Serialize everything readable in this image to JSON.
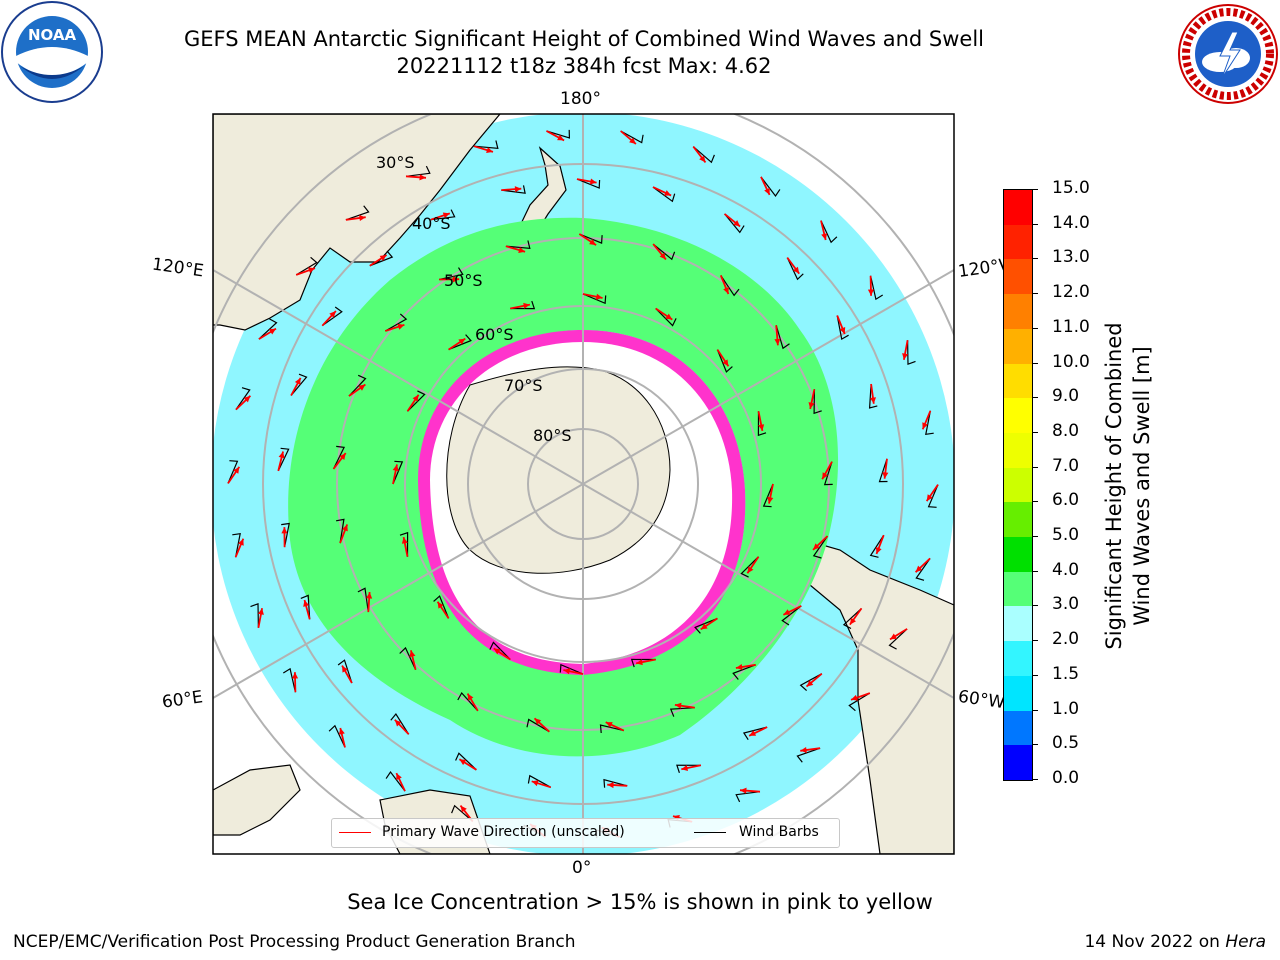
{
  "header": {
    "title_line1": "GEFS MEAN Antarctic Significant Height of Combined Wind Waves and Swell",
    "title_line2": "20221112 t18z 384h fcst   Max: 4.62"
  },
  "logos": {
    "left": "NOAA",
    "right": "NATIONAL WEATHER SERVICE"
  },
  "map": {
    "projection": "south-polar-stereographic",
    "longitude_labels": {
      "top": "180°",
      "bottom": "0°",
      "upper_left": "120°E",
      "upper_right": "120°W",
      "lower_left": "60°E",
      "lower_right": "60°W"
    },
    "latitude_labels": [
      "30°S",
      "40°S",
      "50°S",
      "60°S",
      "70°S",
      "80°S"
    ],
    "colors": {
      "land": "#efecdc",
      "ice": "#ffffff",
      "sea_ice_edge": "#ff33cc",
      "arrow": "#ff0000",
      "barb": "#000000"
    }
  },
  "legend": {
    "primary_wave": "Primary Wave Direction (unscaled)",
    "wind_barbs": "Wind Barbs",
    "primary_wave_color": "#ff0000",
    "wind_barb_color": "#000000"
  },
  "colorbar": {
    "label_line1": "Significant Height of Combined",
    "label_line2": "Wind Waves and Swell [m]",
    "ticks": [
      "0.0",
      "0.5",
      "1.0",
      "1.5",
      "2.0",
      "3.0",
      "4.0",
      "5.0",
      "6.0",
      "7.0",
      "8.0",
      "9.0",
      "10.0",
      "11.0",
      "12.0",
      "13.0",
      "14.0",
      "15.0"
    ],
    "colors": [
      "#0000ff",
      "#0077ff",
      "#00e5ff",
      "#33f5ff",
      "#aaffff",
      "#55ff77",
      "#00e000",
      "#66ee00",
      "#ccff00",
      "#eeff00",
      "#ffff00",
      "#ffdd00",
      "#ffb000",
      "#ff8000",
      "#ff5000",
      "#ff2200",
      "#ff0000"
    ]
  },
  "notes": {
    "sea_ice": "Sea Ice Concentration > 15% is shown in pink to yellow",
    "footer_left": "NCEP/EMC/Verification Post Processing Product Generation Branch",
    "footer_right_prefix": "14 Nov 2022 on ",
    "footer_right_host": "Hera"
  }
}
